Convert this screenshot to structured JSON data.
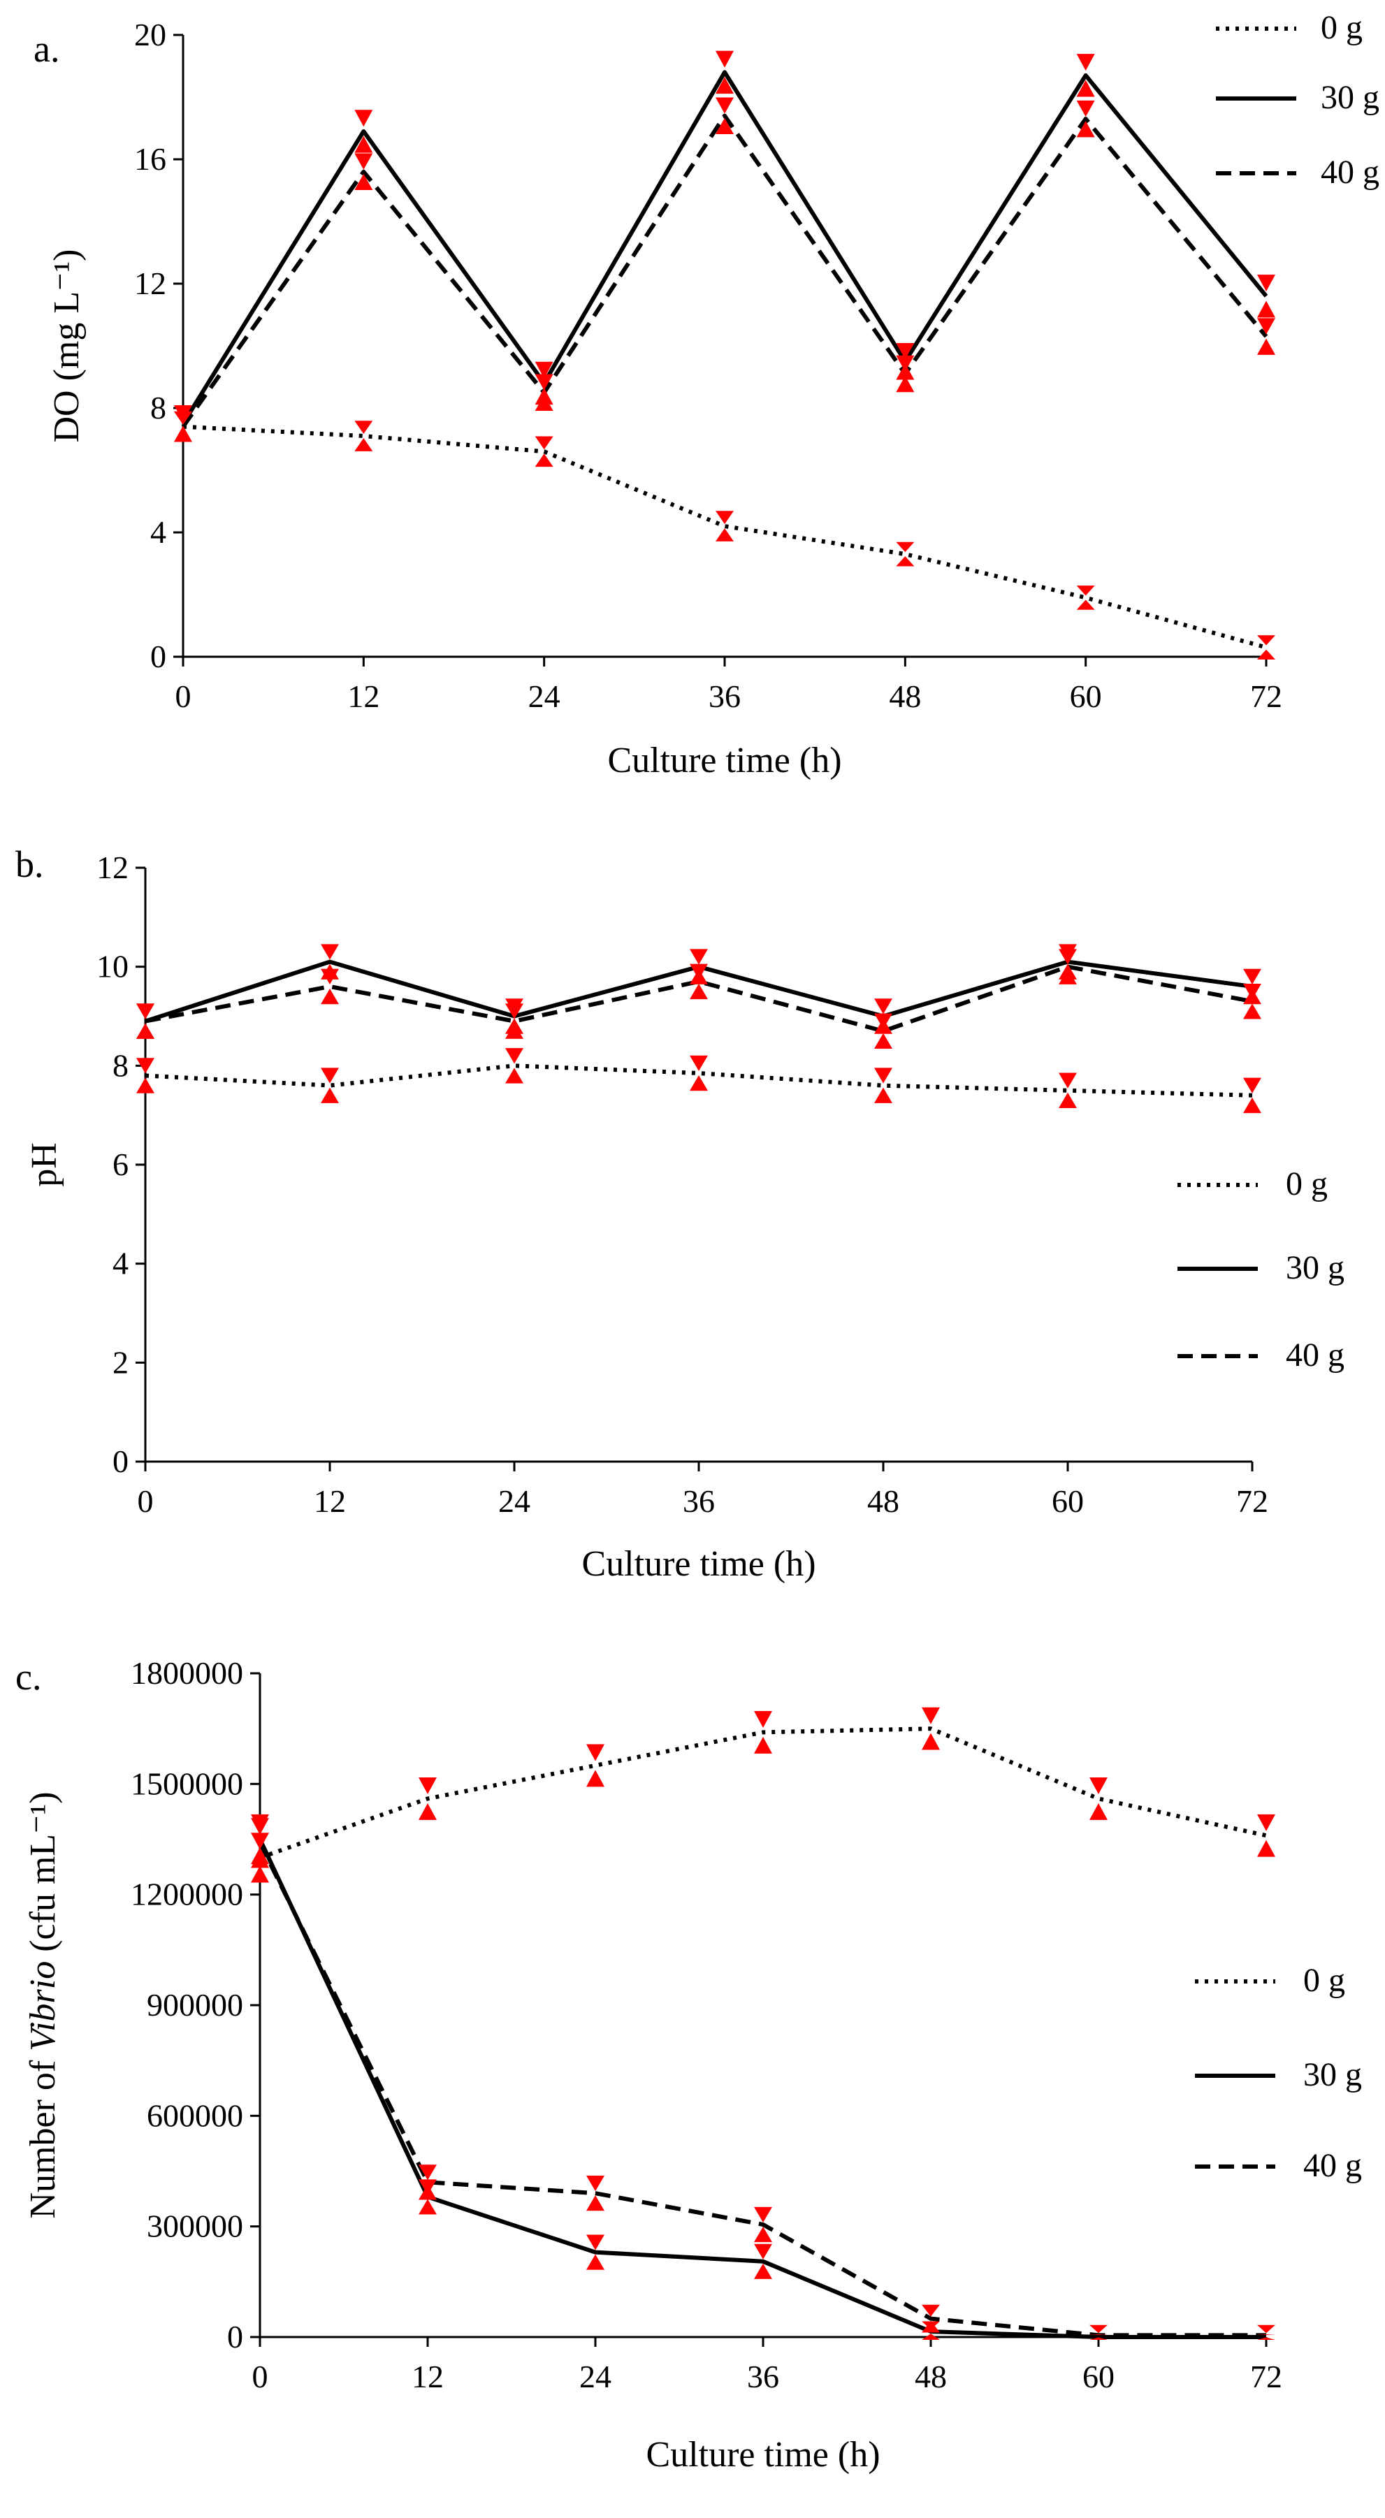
{
  "colors": {
    "background": "#ffffff",
    "axis": "#000000",
    "series_line": "#000000",
    "error_marker": "#ff0000"
  },
  "legend_dash": {
    "0 g": "dotted",
    "30 g": "solid",
    "40 g": "dashed"
  },
  "chart_data": [
    {
      "type": "line",
      "panel_label": "a.",
      "title": "",
      "xlabel": "Culture time (h)",
      "ylabel": "DO (mg L⁻¹)",
      "x": [
        0,
        12,
        24,
        36,
        48,
        60,
        72
      ],
      "xticks": [
        "0",
        "12",
        "24",
        "36",
        "48",
        "60",
        "72"
      ],
      "xlim": [
        0,
        72
      ],
      "ylim": [
        0,
        20
      ],
      "yticks": [
        "0",
        "4",
        "8",
        "12",
        "16",
        "20"
      ],
      "grid": false,
      "legend_position": "top-right",
      "series": [
        {
          "name": "0 g",
          "dash": "dotted",
          "values": [
            7.4,
            7.1,
            6.6,
            4.2,
            3.3,
            1.9,
            0.3
          ],
          "error": [
            0.4,
            0.4,
            0.4,
            0.4,
            0.3,
            0.3,
            0.3
          ]
        },
        {
          "name": "30 g",
          "dash": "solid",
          "values": [
            7.5,
            16.9,
            8.8,
            18.8,
            9.5,
            18.7,
            11.6
          ],
          "error": [
            0.5,
            0.6,
            0.6,
            0.6,
            0.5,
            0.6,
            0.6
          ]
        },
        {
          "name": "40 g",
          "dash": "dashed",
          "values": [
            7.4,
            15.6,
            8.5,
            17.4,
            9.1,
            17.3,
            10.3
          ],
          "error": [
            0.4,
            0.5,
            0.5,
            0.5,
            0.5,
            0.5,
            0.5
          ]
        }
      ]
    },
    {
      "type": "line",
      "panel_label": "b.",
      "title": "",
      "xlabel": "Culture time (h)",
      "ylabel": "pH",
      "x": [
        0,
        12,
        24,
        36,
        48,
        60,
        72
      ],
      "xticks": [
        "0",
        "12",
        "24",
        "36",
        "48",
        "60",
        "72"
      ],
      "xlim": [
        0,
        72
      ],
      "ylim": [
        0,
        12
      ],
      "yticks": [
        "0",
        "2",
        "4",
        "6",
        "8",
        "10",
        "12"
      ],
      "grid": false,
      "legend_position": "middle-right",
      "series": [
        {
          "name": "0 g",
          "dash": "dotted",
          "values": [
            7.8,
            7.6,
            8.0,
            7.85,
            7.6,
            7.5,
            7.4
          ],
          "error": [
            0.3,
            0.3,
            0.3,
            0.3,
            0.3,
            0.3,
            0.3
          ]
        },
        {
          "name": "30 g",
          "dash": "solid",
          "values": [
            8.9,
            10.1,
            9.0,
            10.0,
            9.0,
            10.1,
            9.6
          ],
          "error": [
            0.3,
            0.3,
            0.3,
            0.3,
            0.3,
            0.3,
            0.3
          ]
        },
        {
          "name": "40 g",
          "dash": "dashed",
          "values": [
            8.9,
            9.6,
            8.9,
            9.7,
            8.7,
            10.0,
            9.3
          ],
          "error": [
            0.3,
            0.3,
            0.3,
            0.3,
            0.3,
            0.3,
            0.3
          ]
        }
      ]
    },
    {
      "type": "line",
      "panel_label": "c.",
      "title": "",
      "xlabel": "Culture time (h)",
      "ylabel_parts": [
        "Number of ",
        "Vibrio",
        " (cfu mL⁻¹)"
      ],
      "x": [
        0,
        12,
        24,
        36,
        48,
        60,
        72
      ],
      "xticks": [
        "0",
        "12",
        "24",
        "36",
        "48",
        "60",
        "72"
      ],
      "xlim": [
        0,
        72
      ],
      "ylim": [
        0,
        1800000
      ],
      "yticks": [
        "0",
        "300000",
        "600000",
        "900000",
        "1200000",
        "1500000",
        "1800000"
      ],
      "grid": false,
      "legend_position": "middle-right",
      "series": [
        {
          "name": "0 g",
          "dash": "dotted",
          "values": [
            1300000,
            1460000,
            1550000,
            1640000,
            1650000,
            1460000,
            1360000
          ],
          "error": [
            60000,
            50000,
            50000,
            50000,
            50000,
            50000,
            50000
          ]
        },
        {
          "name": "30 g",
          "dash": "solid",
          "values": [
            1350000,
            380000,
            230000,
            205000,
            15000,
            0,
            0
          ],
          "error": [
            60000,
            40000,
            40000,
            40000,
            20000,
            0,
            0
          ]
        },
        {
          "name": "40 g",
          "dash": "dashed",
          "values": [
            1340000,
            420000,
            390000,
            305000,
            50000,
            5000,
            5000
          ],
          "error": [
            60000,
            40000,
            40000,
            40000,
            30000,
            20000,
            20000
          ]
        }
      ]
    }
  ]
}
